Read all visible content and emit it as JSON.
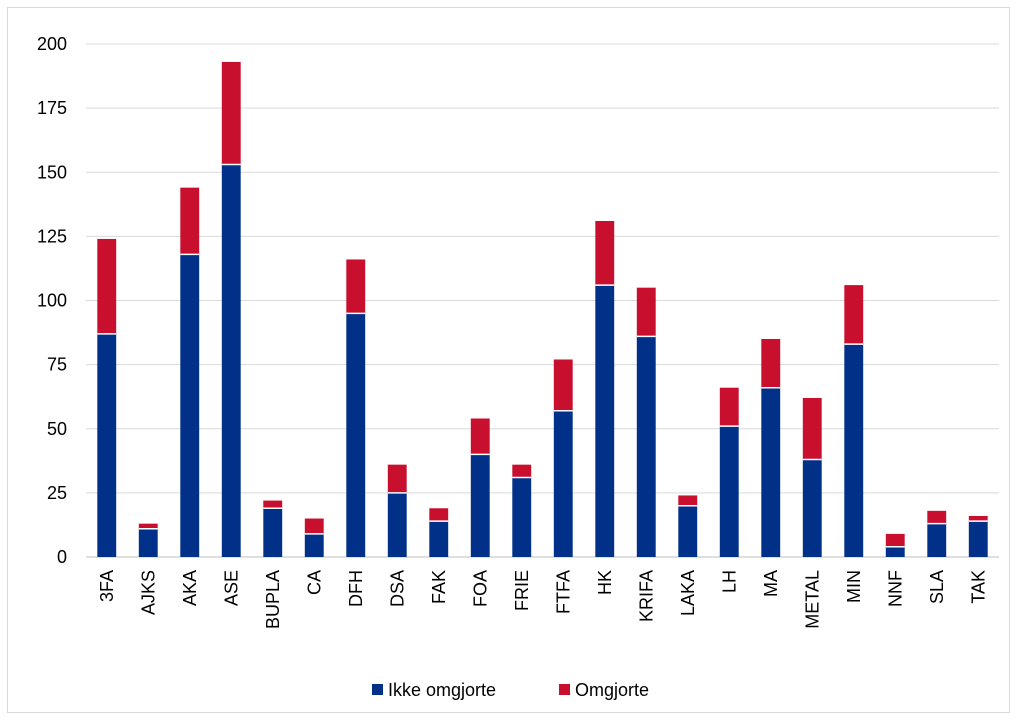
{
  "chart_data": {
    "type": "bar",
    "stacked": true,
    "categories": [
      "3FA",
      "AJKS",
      "AKA",
      "ASE",
      "BUPLA",
      "CA",
      "DFH",
      "DSA",
      "FAK",
      "FOA",
      "FRIE",
      "FTFA",
      "HK",
      "KRIFA",
      "LAKA",
      "LH",
      "MA",
      "METAL",
      "MIN",
      "NNF",
      "SLA",
      "TAK"
    ],
    "series": [
      {
        "name": "Ikke omgjorte",
        "color": "#003087",
        "values": [
          87,
          11,
          118,
          153,
          19,
          9,
          95,
          25,
          14,
          40,
          31,
          57,
          106,
          86,
          20,
          51,
          66,
          38,
          83,
          4,
          13,
          14
        ]
      },
      {
        "name": "Omgjorte",
        "color": "#c8102e",
        "values": [
          37,
          2,
          26,
          40,
          3,
          6,
          21,
          11,
          5,
          14,
          5,
          20,
          25,
          19,
          4,
          15,
          19,
          24,
          23,
          5,
          5,
          2
        ]
      }
    ],
    "ylim": [
      0,
      200
    ],
    "yticks": [
      0,
      25,
      50,
      75,
      100,
      125,
      150,
      175,
      200
    ],
    "grid": true,
    "legend_position": "bottom",
    "title": "",
    "xlabel": "",
    "ylabel": ""
  }
}
